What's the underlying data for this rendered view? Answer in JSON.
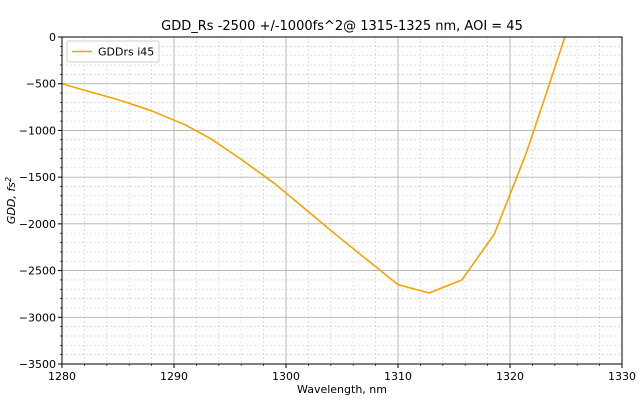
{
  "chart_data": {
    "type": "line",
    "title": "GDD_Rs -2500 +/-1000fs^2@ 1315-1325 nm, AOI = 45",
    "xlabel": "Wavelength, nm",
    "ylabel_main": "GDD, fs",
    "ylabel_sup": "2",
    "xlim": [
      1280,
      1330
    ],
    "ylim": [
      -3500,
      0
    ],
    "xticks": [
      1280,
      1290,
      1300,
      1310,
      1320,
      1330
    ],
    "yticks": [
      -3500,
      -3000,
      -2500,
      -2000,
      -1500,
      -1000,
      -500,
      0
    ],
    "x_minor_step": 2,
    "y_minor_step": 100,
    "grid": true,
    "legend_position": "upper-left",
    "colors": {
      "line": "#f5a300",
      "major_grid": "#b0b0b0",
      "minor_grid": "#d3d3d3"
    },
    "series": [
      {
        "name": "GDDrs i45",
        "x": [
          1280,
          1282,
          1285,
          1288,
          1291,
          1293.3,
          1296,
          1299,
          1301.5,
          1304.5,
          1307.5,
          1310,
          1312.8,
          1315.7,
          1318.6,
          1321.4,
          1323.2,
          1324.9
        ],
        "y": [
          -500,
          -570,
          -670,
          -790,
          -940,
          -1090,
          -1310,
          -1570,
          -1820,
          -2120,
          -2410,
          -2650,
          -2740,
          -2600,
          -2110,
          -1260,
          -620,
          0
        ]
      }
    ]
  }
}
